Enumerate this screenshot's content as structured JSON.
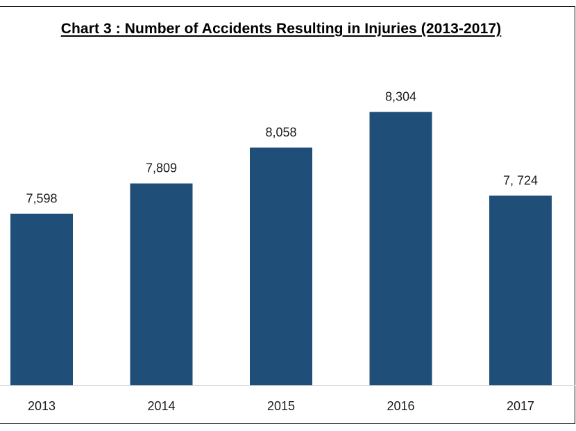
{
  "chart_data": {
    "type": "bar",
    "title": "Chart 3 : Number of Accidents Resulting in Injuries (2013-2017)",
    "categories": [
      "2013",
      "2014",
      "2015",
      "2016",
      "2017"
    ],
    "values": [
      7598,
      7809,
      8058,
      8304,
      7724
    ],
    "data_labels": [
      "7,598",
      "7,809",
      "8,058",
      "8,304",
      "7, 724"
    ],
    "ylim": [
      6410,
      8600
    ],
    "grid": false,
    "legend": "none",
    "bar_color": "#1f4e79"
  }
}
